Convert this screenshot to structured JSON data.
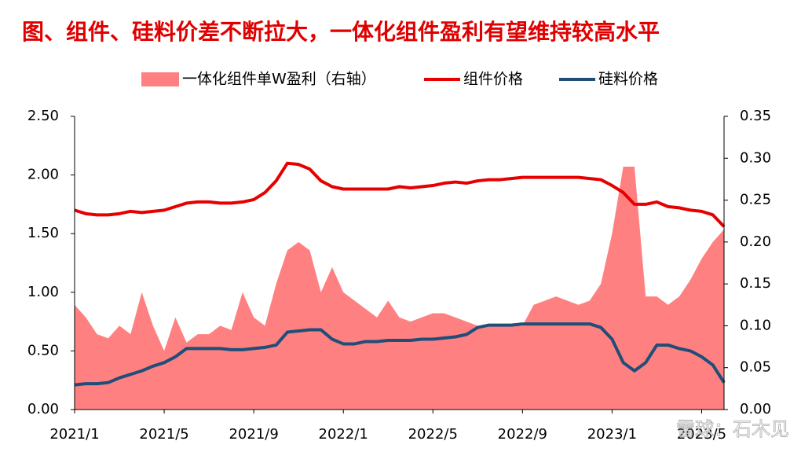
{
  "chart_data": {
    "type": "line",
    "title": "图、组件、硅料价差不断拉大，一体化组件盈利有望维持较高水平",
    "watermark": "雪球：石木见",
    "categories": [
      "2021/1",
      null,
      null,
      null,
      null,
      null,
      null,
      null,
      "2021/5",
      null,
      null,
      null,
      null,
      null,
      null,
      null,
      "2021/9",
      null,
      null,
      null,
      null,
      null,
      null,
      null,
      "2022/1",
      null,
      null,
      null,
      null,
      null,
      null,
      null,
      "2022/5",
      null,
      null,
      null,
      null,
      null,
      null,
      null,
      "2022/9",
      null,
      null,
      null,
      null,
      null,
      null,
      null,
      "2023/1",
      null,
      null,
      null,
      null,
      null,
      null,
      null,
      "2023/5",
      null,
      null
    ],
    "series": [
      {
        "name": "一体化组件单W盈利（右轴）",
        "kind": "area",
        "axis": "y2",
        "color": "#ff8080",
        "values": [
          0.125,
          0.11,
          0.09,
          0.085,
          0.1,
          0.09,
          0.14,
          0.1,
          0.07,
          0.11,
          0.08,
          0.09,
          0.09,
          0.1,
          0.095,
          0.14,
          0.11,
          0.1,
          0.15,
          0.19,
          0.2,
          0.19,
          0.14,
          0.17,
          0.14,
          0.13,
          0.12,
          0.11,
          0.13,
          0.11,
          0.105,
          0.11,
          0.115,
          0.115,
          0.11,
          0.105,
          0.1,
          0.1,
          0.1,
          0.1,
          0.1,
          0.125,
          0.13,
          0.135,
          0.13,
          0.125,
          0.13,
          0.15,
          0.21,
          0.29,
          0.29,
          0.135,
          0.135,
          0.125,
          0.135,
          0.155,
          0.18,
          0.2,
          0.215
        ]
      },
      {
        "name": "组件价格",
        "kind": "line",
        "color": "#e60000",
        "values": [
          1.7,
          1.67,
          1.66,
          1.66,
          1.67,
          1.69,
          1.68,
          1.69,
          1.7,
          1.73,
          1.76,
          1.77,
          1.77,
          1.76,
          1.76,
          1.77,
          1.79,
          1.85,
          1.95,
          2.1,
          2.09,
          2.05,
          1.95,
          1.9,
          1.88,
          1.88,
          1.88,
          1.88,
          1.88,
          1.9,
          1.89,
          1.9,
          1.91,
          1.93,
          1.94,
          1.93,
          1.95,
          1.96,
          1.96,
          1.97,
          1.98,
          1.98,
          1.98,
          1.98,
          1.98,
          1.98,
          1.97,
          1.96,
          1.91,
          1.85,
          1.75,
          1.75,
          1.77,
          1.73,
          1.72,
          1.7,
          1.69,
          1.66,
          1.56
        ]
      },
      {
        "name": "硅料价格",
        "kind": "line",
        "color": "#1f4e79",
        "values": [
          0.21,
          0.22,
          0.22,
          0.23,
          0.27,
          0.3,
          0.33,
          0.37,
          0.4,
          0.45,
          0.52,
          0.52,
          0.52,
          0.52,
          0.51,
          0.51,
          0.52,
          0.53,
          0.55,
          0.66,
          0.67,
          0.68,
          0.68,
          0.6,
          0.56,
          0.56,
          0.58,
          0.58,
          0.59,
          0.59,
          0.59,
          0.6,
          0.6,
          0.61,
          0.62,
          0.64,
          0.7,
          0.72,
          0.72,
          0.72,
          0.73,
          0.73,
          0.73,
          0.73,
          0.73,
          0.73,
          0.73,
          0.7,
          0.6,
          0.4,
          0.33,
          0.4,
          0.55,
          0.55,
          0.52,
          0.5,
          0.45,
          0.38,
          0.23
        ]
      }
    ],
    "ylim": [
      0,
      2.5
    ],
    "yticks": [
      {
        "value": 0,
        "label": "0.00"
      },
      {
        "value": 0.5,
        "label": "0.50"
      },
      {
        "value": 1,
        "label": "1.00"
      },
      {
        "value": 1.5,
        "label": "1.50"
      },
      {
        "value": 2,
        "label": "2.00"
      },
      {
        "value": 2.5,
        "label": "2.50"
      }
    ],
    "y2lim": [
      0,
      0.35
    ],
    "y2ticks": [
      {
        "value": 0,
        "label": "0.00"
      },
      0.05,
      {
        "value": 0.1,
        "label": "0.10"
      },
      0.15,
      {
        "value": 0.2,
        "label": "0.20"
      },
      0.25,
      {
        "value": 0.3,
        "label": "0.30"
      },
      0.35
    ],
    "legend": "top",
    "grid": false
  }
}
